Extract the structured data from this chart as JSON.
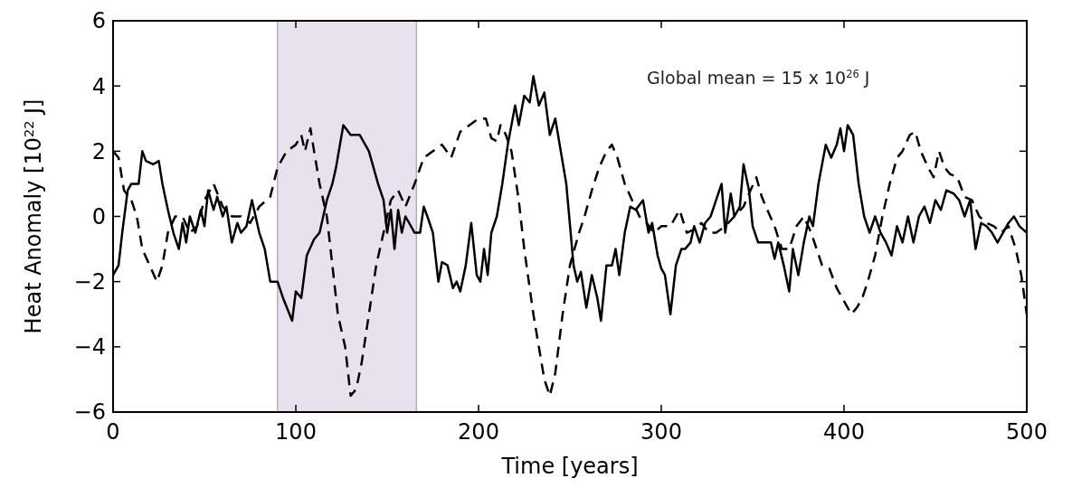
{
  "chart_data": {
    "type": "line",
    "xlabel": "Time [years]",
    "ylabel": "Heat Anomaly [10$^{22}$ J]",
    "annotations": [
      "Global mean = 15 x 10$^{26}$ J"
    ],
    "xlim": [
      0,
      500
    ],
    "xticks": [
      0,
      100,
      200,
      300,
      400,
      500
    ],
    "ylim": [
      -6,
      6
    ],
    "yticks": [
      {
        "value": -6,
        "label": "−6"
      },
      {
        "value": -4,
        "label": "−4"
      },
      {
        "value": -2,
        "label": "−2"
      },
      0,
      2,
      4,
      6
    ],
    "grid": false,
    "bands": [
      {
        "axis": "x",
        "from": 90,
        "to": 166,
        "color": "#e8e2ef"
      }
    ],
    "series": [
      {
        "color": "#000000",
        "line_style": "solid",
        "x": [
          0,
          3,
          5,
          8,
          10,
          14,
          16,
          18,
          22,
          25,
          27,
          30,
          33,
          36,
          38,
          40,
          42,
          45,
          48,
          50,
          52,
          55,
          57,
          60,
          62,
          65,
          68,
          70,
          73,
          76,
          78,
          80,
          83,
          86,
          90,
          93,
          98,
          100,
          103,
          106,
          110,
          113,
          117,
          120,
          122,
          126,
          130,
          135,
          140,
          145,
          148,
          150,
          152,
          154,
          156,
          158,
          160,
          165,
          168,
          170,
          172,
          175,
          178,
          180,
          183,
          186,
          188,
          190,
          193,
          196,
          199,
          201,
          203,
          205,
          207,
          210,
          213,
          216,
          220,
          222,
          225,
          228,
          230,
          233,
          236,
          239,
          242,
          245,
          248,
          252,
          254,
          256,
          259,
          262,
          265,
          267,
          270,
          273,
          275,
          277,
          280,
          283,
          286,
          290,
          293,
          295,
          298,
          300,
          302,
          305,
          308,
          311,
          313,
          316,
          318,
          321,
          324,
          327,
          330,
          333,
          335,
          338,
          340,
          343,
          345,
          348,
          350,
          353,
          356,
          360,
          362,
          364,
          367,
          370,
          372,
          375,
          378,
          381,
          383,
          386,
          390,
          393,
          396,
          398,
          400,
          402,
          405,
          408,
          411,
          414,
          417,
          420,
          423,
          426,
          429,
          432,
          435,
          438,
          441,
          444,
          447,
          450,
          453,
          456,
          460,
          463,
          466,
          469,
          472,
          475,
          478,
          481,
          484,
          487,
          490,
          493,
          496,
          500
        ],
        "values": [
          -1.8,
          -1.5,
          -0.5,
          0.8,
          1.0,
          1.0,
          2.0,
          1.7,
          1.6,
          1.7,
          1.0,
          0.2,
          -0.5,
          -1.0,
          -0.2,
          -0.8,
          0.0,
          -0.5,
          0.2,
          -0.3,
          0.8,
          0.2,
          0.6,
          0.0,
          0.3,
          -0.8,
          -0.2,
          -0.5,
          -0.3,
          0.5,
          0,
          -0.5,
          -1.0,
          -2.0,
          -2.0,
          -2.5,
          -3.2,
          -2.3,
          -2.5,
          -1.2,
          -0.7,
          -0.5,
          0.5,
          1.0,
          1.5,
          2.8,
          2.5,
          2.5,
          2.0,
          1.0,
          0.5,
          -0.5,
          0.2,
          -1.0,
          0.2,
          -0.5,
          0,
          -0.5,
          -0.5,
          0.3,
          0.0,
          -0.5,
          -2.0,
          -1.4,
          -1.5,
          -2.2,
          -2.0,
          -2.3,
          -1.5,
          -0.2,
          -1.8,
          -2.0,
          -1.0,
          -1.8,
          -0.5,
          0.0,
          1.0,
          2.2,
          3.4,
          2.8,
          3.7,
          3.5,
          4.3,
          3.4,
          3.8,
          2.5,
          3.0,
          2.0,
          1.0,
          -1.5,
          -2.0,
          -1.7,
          -2.8,
          -1.8,
          -2.5,
          -3.2,
          -1.5,
          -1.5,
          -1.0,
          -1.8,
          -0.5,
          0.3,
          0.2,
          0.5,
          -0.5,
          -0.2,
          -1.2,
          -1.6,
          -1.8,
          -3.0,
          -1.5,
          -1.0,
          -1.0,
          -0.8,
          -0.3,
          -0.8,
          -0.2,
          0.0,
          0.5,
          1.0,
          -0.5,
          0.7,
          0.0,
          0.3,
          1.6,
          0.8,
          -0.3,
          -0.8,
          -0.8,
          -0.8,
          -1.3,
          -0.8,
          -1.5,
          -2.3,
          -1.0,
          -1.8,
          -0.8,
          0.0,
          -0.3,
          1.0,
          2.2,
          1.8,
          2.2,
          2.7,
          2.0,
          2.8,
          2.5,
          1.0,
          0.0,
          -0.5,
          0.0,
          -0.5,
          -0.8,
          -1.2,
          -0.3,
          -0.8,
          0.0,
          -0.8,
          0.0,
          0.3,
          -0.2,
          0.5,
          0.2,
          0.8,
          0.7,
          0.5,
          0.0,
          0.5,
          -1.0,
          -0.2,
          -0.3,
          -0.5,
          -0.8,
          -0.5,
          -0.2,
          0.0,
          -0.3,
          -0.5
        ]
      },
      {
        "color": "#000000",
        "line_style": "dashed",
        "x": [
          0,
          3,
          6,
          10,
          13,
          16,
          20,
          24,
          27,
          30,
          34,
          38,
          42,
          46,
          50,
          55,
          60,
          65,
          70,
          75,
          80,
          86,
          90,
          95,
          100,
          103,
          105,
          108,
          110,
          113,
          117,
          120,
          123,
          127,
          130,
          133,
          136,
          140,
          144,
          148,
          152,
          156,
          160,
          165,
          170,
          175,
          180,
          185,
          190,
          195,
          200,
          204,
          207,
          210,
          212,
          215,
          218,
          222,
          225,
          230,
          233,
          236,
          239,
          242,
          246,
          250,
          255,
          258,
          262,
          266,
          270,
          273,
          276,
          280,
          284,
          288,
          292,
          296,
          300,
          305,
          310,
          314,
          318,
          322,
          326,
          330,
          335,
          340,
          345,
          348,
          352,
          355,
          358,
          362,
          366,
          370,
          374,
          378,
          382,
          385,
          388,
          392,
          396,
          400,
          404,
          407,
          410,
          413,
          417,
          421,
          425,
          429,
          432,
          436,
          439,
          442,
          446,
          449,
          452,
          455,
          458,
          462,
          466,
          470,
          474,
          478,
          482,
          486,
          490,
          494,
          497,
          500
        ],
        "values": [
          2.0,
          1.8,
          0.8,
          0.5,
          0.0,
          -1.0,
          -1.5,
          -2.0,
          -1.5,
          -0.5,
          0.0,
          0.0,
          -0.5,
          -0.3,
          0.5,
          1.0,
          0.3,
          0.0,
          0.0,
          -0.2,
          0.3,
          0.6,
          1.5,
          2.0,
          2.2,
          2.5,
          2.0,
          2.7,
          2.0,
          1.0,
          0.0,
          -1.5,
          -3.0,
          -4.0,
          -5.5,
          -5.3,
          -4.5,
          -3.0,
          -1.5,
          -0.5,
          0.5,
          0.8,
          0.3,
          1.0,
          1.8,
          2.0,
          2.2,
          1.8,
          2.6,
          2.8,
          3.0,
          3.0,
          2.4,
          2.3,
          2.8,
          2.5,
          2.0,
          0.5,
          -1.0,
          -3.0,
          -4.0,
          -5.0,
          -5.5,
          -4.8,
          -3.0,
          -1.5,
          -0.5,
          0.0,
          0.8,
          1.5,
          2.0,
          2.2,
          1.8,
          1.0,
          0.5,
          0.0,
          -0.2,
          -0.5,
          -0.3,
          -0.3,
          0.2,
          -0.5,
          -0.4,
          -0.2,
          -0.5,
          -0.5,
          -0.3,
          0.0,
          0.3,
          0.7,
          1.2,
          0.6,
          0.2,
          -0.3,
          -1.0,
          -1.0,
          -0.3,
          0.0,
          -0.5,
          -1.0,
          -1.5,
          -1.6,
          -2.2,
          -2.6,
          -3.0,
          -2.8,
          -2.5,
          -2.0,
          -1.2,
          0.0,
          1.0,
          1.8,
          2.0,
          2.5,
          2.6,
          2.0,
          1.5,
          1.2,
          2.0,
          1.5,
          1.3,
          1.2,
          0.6,
          0.5,
          0.0,
          -0.2,
          -0.3,
          -0.5,
          -0.3,
          -1.0,
          -1.8,
          -3.0
        ]
      }
    ]
  }
}
